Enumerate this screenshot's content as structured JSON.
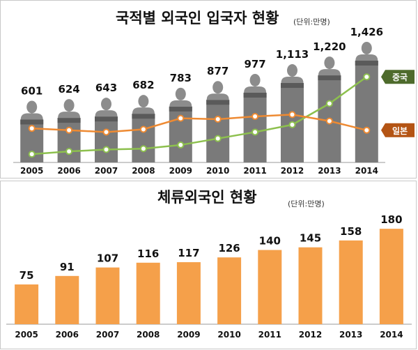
{
  "chart_data": [
    {
      "type": "bar",
      "title": "국적별 외국인 입국자 현황",
      "unit": "(단위:만명)",
      "categories": [
        "2005",
        "2006",
        "2007",
        "2008",
        "2009",
        "2010",
        "2011",
        "2012",
        "2013",
        "2014"
      ],
      "values": [
        601,
        624,
        643,
        682,
        783,
        877,
        977,
        1113,
        1220,
        1426
      ],
      "value_labels": [
        "601",
        "624",
        "643",
        "682",
        "783",
        "877",
        "977",
        "1,113",
        "1,220",
        "1,426"
      ],
      "ylim": [
        0,
        1550
      ],
      "bar_color": "#7a7a7a",
      "bar_cap_color": "#5a5a5a",
      "person_icon_color": "#8c8c8c",
      "lines": [
        {
          "name": "중국",
          "color": "#8dc04e",
          "label_bg": "#4e6b2c",
          "relative_values": [
            0.09,
            0.12,
            0.14,
            0.15,
            0.19,
            0.26,
            0.33,
            0.41,
            0.64,
            0.93
          ]
        },
        {
          "name": "일본",
          "color": "#ee8a32",
          "label_bg": "#b45414",
          "relative_values": [
            0.37,
            0.35,
            0.33,
            0.36,
            0.48,
            0.47,
            0.5,
            0.52,
            0.45,
            0.35
          ]
        }
      ],
      "icons": {
        "person": "person-silhouette-icon"
      }
    },
    {
      "type": "bar",
      "title": "체류외국인 현황",
      "unit": "(단위:만명)",
      "categories": [
        "2005",
        "2006",
        "2007",
        "2008",
        "2009",
        "2010",
        "2011",
        "2012",
        "2013",
        "2014"
      ],
      "values": [
        75,
        91,
        107,
        116,
        117,
        126,
        140,
        145,
        158,
        180
      ],
      "value_labels": [
        "75",
        "91",
        "107",
        "116",
        "117",
        "126",
        "140",
        "145",
        "158",
        "180"
      ],
      "ylim": [
        0,
        217
      ],
      "bar_color": "#f5a04a"
    }
  ]
}
